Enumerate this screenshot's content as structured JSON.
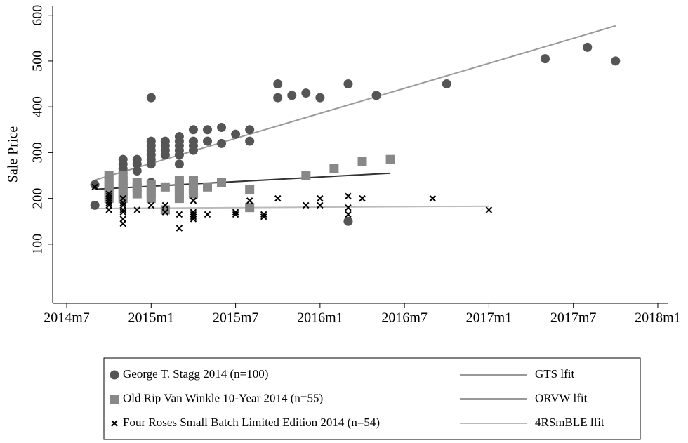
{
  "chart_data": {
    "type": "scatter",
    "y_label": "Sale Price",
    "xlim": [
      653,
      696.75
    ],
    "ylim": [
      -29,
      621
    ],
    "xticks": [
      {
        "value": 654,
        "label": "2014m7"
      },
      {
        "value": 660,
        "label": "2015m1"
      },
      {
        "value": 666,
        "label": "2015m7"
      },
      {
        "value": 672,
        "label": "2016m1"
      },
      {
        "value": 678,
        "label": "2016m7"
      },
      {
        "value": 684,
        "label": "2017m1"
      },
      {
        "value": 690,
        "label": "2017m7"
      },
      {
        "value": 696,
        "label": "2018m1"
      }
    ],
    "yticks": [
      100,
      200,
      300,
      400,
      500,
      600
    ],
    "series": [
      {
        "name": "George T. Stagg 2014 (n=100)",
        "color": "#555555",
        "marker": "circle",
        "x": [
          656,
          656,
          658,
          658,
          658,
          658,
          658,
          658,
          659,
          659,
          659,
          660,
          660,
          660,
          660,
          660,
          660,
          660,
          660,
          661,
          661,
          661,
          661,
          662,
          662,
          662,
          662,
          662,
          662,
          663,
          663,
          663,
          663,
          664,
          664,
          665,
          665,
          666,
          667,
          667,
          669,
          669,
          670,
          671,
          672,
          674,
          674,
          676,
          681,
          688,
          691,
          693
        ],
        "values": [
          230,
          185,
          285,
          275,
          265,
          255,
          245,
          230,
          285,
          275,
          260,
          420,
          325,
          315,
          305,
          295,
          285,
          275,
          235,
          325,
          315,
          305,
          295,
          335,
          325,
          315,
          305,
          295,
          275,
          350,
          325,
          315,
          305,
          350,
          325,
          355,
          320,
          340,
          350,
          325,
          450,
          420,
          425,
          430,
          420,
          450,
          150,
          425,
          450,
          505,
          530,
          500
        ]
      },
      {
        "name": "Old Rip Van Winkle 10-Year 2014 (n=55)",
        "color": "#888888",
        "marker": "square",
        "x": [
          657,
          657,
          657,
          657,
          657,
          657,
          658,
          658,
          658,
          658,
          658,
          658,
          659,
          659,
          659,
          660,
          660,
          660,
          660,
          661,
          661,
          662,
          662,
          662,
          662,
          662,
          663,
          663,
          663,
          663,
          664,
          665,
          667,
          667,
          671,
          673,
          675,
          677
        ],
        "values": [
          250,
          240,
          230,
          220,
          210,
          200,
          250,
          240,
          230,
          220,
          210,
          200,
          235,
          225,
          210,
          230,
          220,
          210,
          200,
          225,
          175,
          240,
          230,
          220,
          210,
          200,
          240,
          230,
          220,
          210,
          225,
          235,
          220,
          180,
          250,
          265,
          280,
          285
        ]
      },
      {
        "name": "Four Roses Small Batch Limited Edition 2014 (n=54)",
        "color": "#000000",
        "marker": "x",
        "x": [
          656,
          657,
          657,
          657,
          657,
          657,
          657,
          657,
          658,
          658,
          658,
          658,
          658,
          658,
          658,
          659,
          660,
          661,
          661,
          662,
          662,
          663,
          663,
          663,
          663,
          663,
          664,
          666,
          666,
          667,
          668,
          668,
          669,
          671,
          672,
          672,
          674,
          674,
          674,
          675,
          680,
          684
        ],
        "values": [
          225,
          210,
          205,
          200,
          195,
          190,
          185,
          175,
          200,
          190,
          185,
          175,
          170,
          155,
          145,
          175,
          185,
          185,
          170,
          165,
          135,
          195,
          170,
          165,
          160,
          155,
          165,
          170,
          165,
          195,
          165,
          160,
          200,
          185,
          200,
          185,
          205,
          180,
          165,
          200,
          200,
          175
        ]
      }
    ],
    "fits": [
      {
        "name": "GTS lfit",
        "color": "#999999",
        "x": [
          656,
          693
        ],
        "values": [
          240,
          577
        ]
      },
      {
        "name": "ORVW lfit",
        "color": "#333333",
        "x": [
          656,
          677
        ],
        "values": [
          220,
          255
        ]
      },
      {
        "name": "4RSmBLE lfit",
        "color": "#bbbbbb",
        "x": [
          656,
          684
        ],
        "values": [
          178,
          183
        ]
      }
    ]
  }
}
